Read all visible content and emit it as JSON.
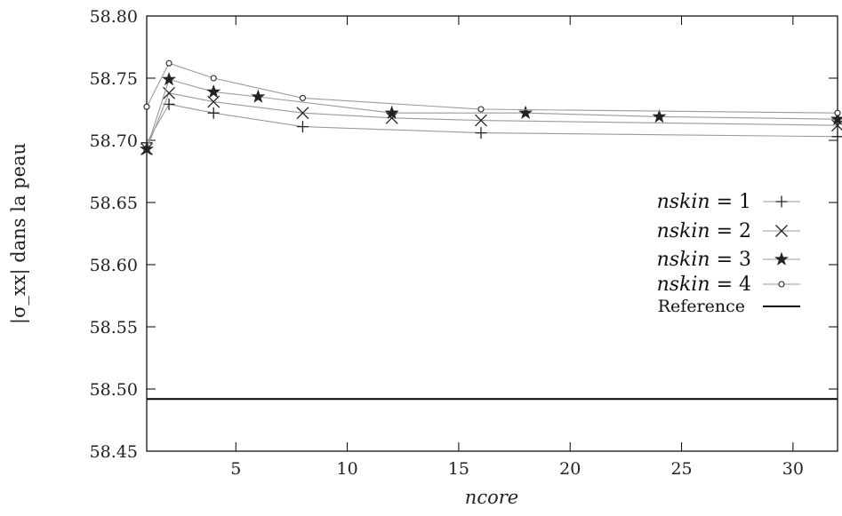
{
  "chart_data": {
    "type": "line",
    "title": "",
    "xlabel": "ncore",
    "ylabel": "|σ_xx| dans la peau",
    "xlim": [
      1,
      32
    ],
    "ylim": [
      58.45,
      58.8
    ],
    "xticks": [
      5,
      10,
      15,
      20,
      25,
      30
    ],
    "yticks": [
      58.45,
      58.5,
      58.55,
      58.6,
      58.65,
      58.7,
      58.75,
      58.8
    ],
    "ytick_labels": [
      "58.45",
      "58.50",
      "58.55",
      "58.60",
      "58.65",
      "58.70",
      "58.75",
      "58.80"
    ],
    "legend_position": "right",
    "series": [
      {
        "name": "nskin = 1",
        "legend_prefix": "nskin",
        "legend_suffix": " = 1",
        "marker": "plus",
        "x": [
          1,
          2,
          4,
          8,
          16,
          32
        ],
        "y": [
          58.698,
          58.729,
          58.722,
          58.711,
          58.706,
          58.703
        ]
      },
      {
        "name": "nskin = 2",
        "legend_prefix": "nskin",
        "legend_suffix": " = 2",
        "marker": "cross",
        "x": [
          1,
          2,
          4,
          8,
          12,
          16,
          32
        ],
        "y": [
          58.693,
          58.738,
          58.731,
          58.722,
          58.718,
          58.716,
          58.712
        ]
      },
      {
        "name": "nskin = 3",
        "legend_prefix": "nskin",
        "legend_suffix": " = 3",
        "marker": "star",
        "x": [
          1,
          2,
          4,
          6,
          12,
          18,
          24,
          32
        ],
        "y": [
          58.693,
          58.749,
          58.739,
          58.735,
          58.722,
          58.722,
          58.719,
          58.717
        ]
      },
      {
        "name": "nskin = 4",
        "legend_prefix": "nskin",
        "legend_suffix": " = 4",
        "marker": "circle",
        "x": [
          1,
          2,
          4,
          8,
          16,
          32
        ],
        "y": [
          58.727,
          58.762,
          58.75,
          58.734,
          58.725,
          58.722
        ]
      }
    ],
    "reference": {
      "name": "Reference",
      "y": 58.492
    },
    "colors": {
      "series_line": "#9a9a9a",
      "marker": "#222222",
      "reference": "#000000",
      "axis": "#000000"
    }
  }
}
